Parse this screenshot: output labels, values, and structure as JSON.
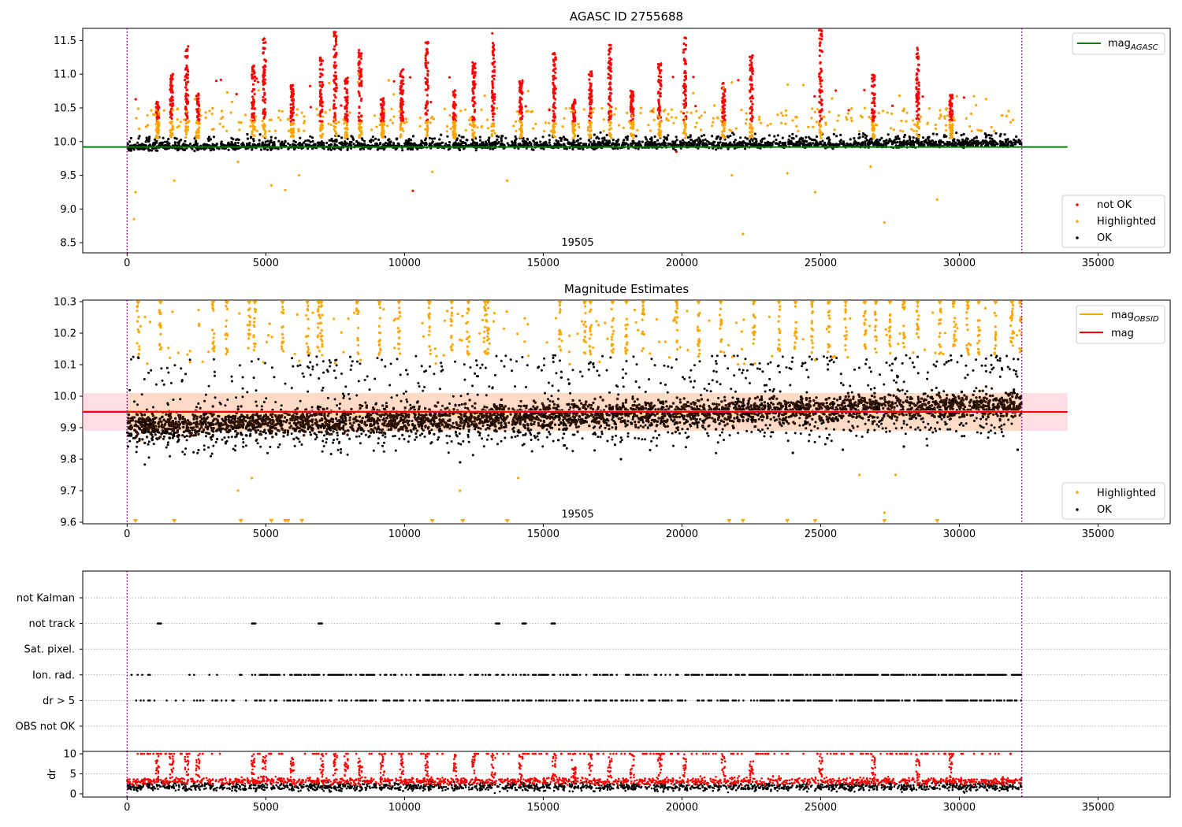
{
  "figure": {
    "x_ticks": [
      0,
      5000,
      10000,
      15000,
      20000,
      25000,
      30000,
      35000
    ]
  },
  "chart_data": [
    {
      "type": "scatter",
      "title": "AGASC ID 2755688",
      "annotation": "19505",
      "xlim": [
        -1600,
        37600
      ],
      "ylim": [
        8.35,
        11.68
      ],
      "y_ticks": [
        "8.5",
        "9.0",
        "9.5",
        "10.0",
        "10.5",
        "11.0",
        "11.5"
      ],
      "y_tick_values": [
        8.5,
        9.0,
        9.5,
        10.0,
        10.5,
        11.0,
        11.5
      ],
      "hline": {
        "y": 9.92,
        "xmax": 33900,
        "color": "#008000"
      },
      "vlines": [
        0,
        32250
      ],
      "legend_line": {
        "label": "mag",
        "sub": "AGASC"
      },
      "legend_points": [
        {
          "label": "not OK",
          "color": "#ff0000"
        },
        {
          "label": "Highlighted",
          "color": "#ffa500"
        },
        {
          "label": "OK",
          "color": "#000000"
        }
      ],
      "colors": {
        "ok": "#000000",
        "highlighted": "#ffa500",
        "not_ok": "#ff0000"
      },
      "series": [
        {
          "key": "ok",
          "base": 9.94,
          "spread": 0.07
        },
        {
          "key": "not_ok",
          "spike_centers": [
            1100,
            1600,
            2150,
            2550,
            4550,
            4950,
            5950,
            7000,
            7500,
            7900,
            8400,
            9200,
            9900,
            10800,
            11800,
            12500,
            13200,
            14200,
            15400,
            16100,
            16700,
            17400,
            18200,
            19200,
            20100,
            21500,
            22500,
            25000,
            26900,
            28500,
            29700
          ]
        },
        {
          "key": "highlighted",
          "outliers": [
            [
              300,
              9.25
            ],
            [
              250,
              8.85
            ],
            [
              1700,
              9.42
            ],
            [
              4000,
              9.7
            ],
            [
              5200,
              9.35
            ],
            [
              5700,
              9.28
            ],
            [
              6200,
              9.5
            ],
            [
              10300,
              9.27
            ],
            [
              11000,
              9.55
            ],
            [
              13700,
              9.42
            ],
            [
              21800,
              9.5
            ],
            [
              22200,
              8.63
            ],
            [
              23800,
              9.53
            ],
            [
              24800,
              9.25
            ],
            [
              27300,
              8.8
            ],
            [
              29200,
              9.14
            ],
            [
              26800,
              9.63
            ]
          ]
        }
      ]
    },
    {
      "type": "scatter",
      "title": "Magnitude Estimates",
      "annotation": "19505",
      "xlim": [
        -1600,
        37600
      ],
      "ylim": [
        9.595,
        10.305
      ],
      "y_ticks": [
        "9.6",
        "9.7",
        "9.8",
        "9.9",
        "10.0",
        "10.1",
        "10.2",
        "10.3"
      ],
      "y_tick_values": [
        9.6,
        9.7,
        9.8,
        9.9,
        10.0,
        10.1,
        10.2,
        10.3
      ],
      "band": {
        "y0": 9.89,
        "y1": 10.01,
        "xmax": 33900
      },
      "hlines": [
        {
          "y": 9.952,
          "color": "#ffa500",
          "xmax": 32250
        },
        {
          "y": 9.95,
          "color": "#ff0000",
          "xmax": 33900
        }
      ],
      "vlines": [
        0,
        32250
      ],
      "legend_lines": [
        {
          "label": "mag",
          "sub": "OBSID",
          "color": "#ffa500"
        },
        {
          "label": "mag",
          "sub": "",
          "color": "#ff0000"
        }
      ],
      "legend_points": [
        {
          "label": "Highlighted",
          "color": "#ffa500"
        },
        {
          "label": "OK",
          "color": "#000000"
        }
      ],
      "colors": {
        "ok": "#000000",
        "ok_dense": "#2e1200",
        "highlighted": "#ffa500"
      },
      "series": [
        {
          "key": "ok",
          "base": 9.92,
          "spread": 0.04
        },
        {
          "key": "highlighted_bottom",
          "x": [
            300,
            1700,
            4100,
            5200,
            5700,
            5800,
            6300,
            11000,
            12100,
            13700,
            21700,
            22200,
            23800,
            24800,
            27300,
            29200
          ]
        },
        {
          "key": "highlighted_top",
          "x": [
            400,
            1200,
            3100,
            3600,
            4400,
            4600,
            5600,
            6500,
            6900,
            7000,
            8300,
            9100,
            9800,
            10900,
            11700,
            12300,
            12900,
            13000,
            15600,
            16500,
            16700,
            17500,
            18000,
            18600,
            19800,
            20600,
            21400,
            22600,
            23500,
            24100,
            24700,
            25300,
            25900,
            26600,
            27000,
            27500,
            28000,
            28500,
            29300,
            29800,
            30300,
            30700,
            31300,
            31900,
            32200
          ]
        }
      ]
    },
    {
      "type": "scatter",
      "title": "",
      "xlim": [
        -1600,
        37600
      ],
      "y_categories": [
        "not Kalman",
        "not track",
        "Sat. pixel.",
        "Ion. rad.",
        "dr > 5",
        "OBS not OK"
      ],
      "vlines": [
        0,
        32250
      ],
      "flags": {
        "not track": [
          [
            1100,
            1250
          ],
          [
            4500,
            4650
          ],
          [
            6900,
            7050
          ],
          [
            13300,
            13450
          ],
          [
            14250,
            14400
          ],
          [
            15300,
            15450
          ]
        ],
        "Ion. rad.": "dense",
        "dr > 5": "dense"
      }
    },
    {
      "type": "scatter",
      "title": "",
      "ylabel": "dr",
      "xlim": [
        -1600,
        37600
      ],
      "ylim": [
        -0.8,
        10.6
      ],
      "y_ticks": [
        "0",
        "5",
        "10"
      ],
      "y_tick_values": [
        0,
        5,
        10
      ],
      "vlines": [
        0,
        32250
      ],
      "colors": {
        "low": "#000000",
        "high": "#ff0000"
      }
    }
  ]
}
